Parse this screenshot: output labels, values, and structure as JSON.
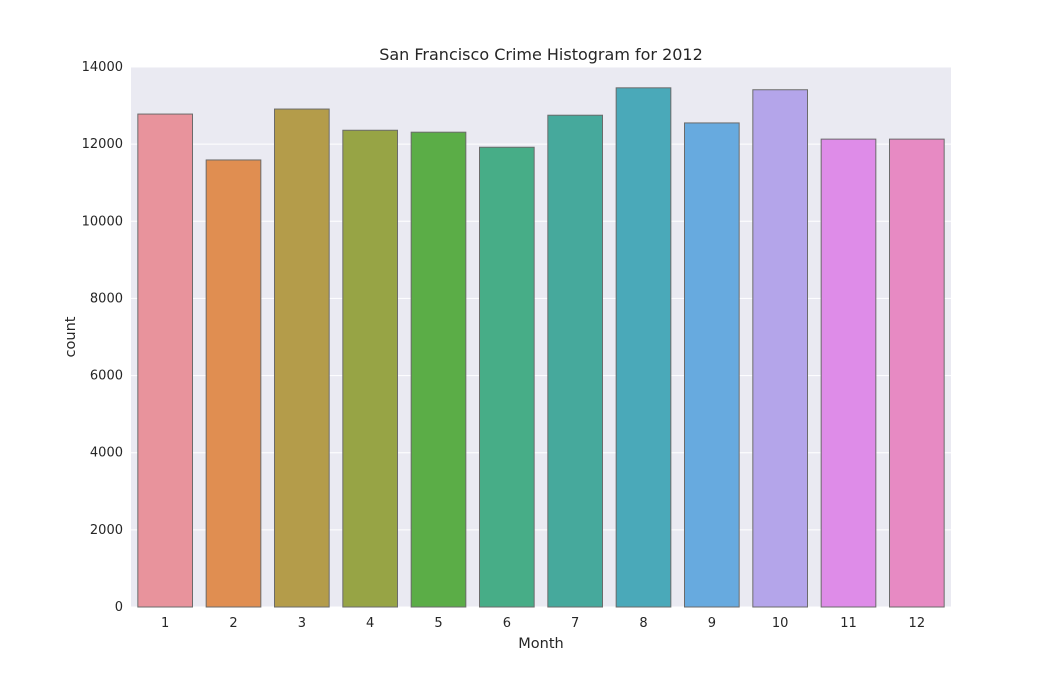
{
  "chart_data": {
    "type": "bar",
    "title": "San Francisco Crime Histogram for 2012",
    "xlabel": "Month",
    "ylabel": "count",
    "categories": [
      "1",
      "2",
      "3",
      "4",
      "5",
      "6",
      "7",
      "8",
      "9",
      "10",
      "11",
      "12"
    ],
    "values": [
      12780,
      11590,
      12910,
      12360,
      12310,
      11920,
      12750,
      13460,
      12550,
      13410,
      12130,
      12130
    ],
    "ylim": [
      0,
      14000
    ],
    "yticks": [
      0,
      2000,
      4000,
      6000,
      8000,
      10000,
      12000,
      14000
    ],
    "ytick_labels": [
      "0",
      "2000",
      "4000",
      "6000",
      "8000",
      "10000",
      "12000",
      "14000"
    ],
    "grid": true,
    "legend": "none",
    "colors": [
      "#e8939c",
      "#e08e51",
      "#b49c4a",
      "#97a445",
      "#5bad47",
      "#47ad87",
      "#46a99c",
      "#4aa9b9",
      "#67aadf",
      "#b4a5ea",
      "#de8ce8",
      "#e78ac3"
    ],
    "background_color": "#eaeaf2",
    "grid_color": "#ffffff",
    "edge_color": "#6b6b6b"
  }
}
